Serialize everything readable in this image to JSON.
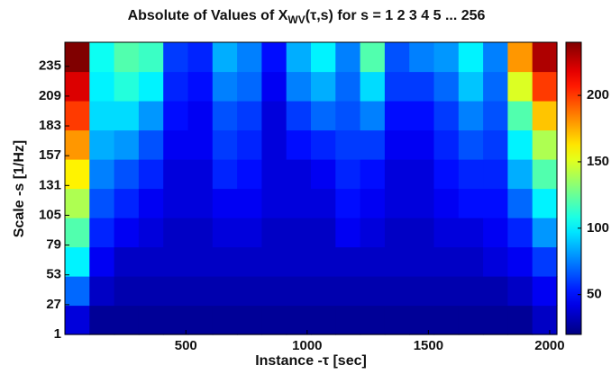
{
  "chart_data": {
    "type": "heatmap",
    "title": {
      "main": "Absolute of Values of X",
      "subscript": "WV",
      "rest": "(τ,s) for s =  1 2 3 4 5 ... 256"
    },
    "x_label": "Instance -τ [sec]",
    "y_label": "Scale -s [1/Hz]",
    "xlim": [
      1,
      2030
    ],
    "xticks": [
      500,
      1000,
      1500,
      2000
    ],
    "ylim": [
      1,
      256
    ],
    "yticks": [
      1,
      27,
      53,
      79,
      105,
      131,
      157,
      183,
      209,
      235
    ],
    "colormap": "jet",
    "clim": [
      20,
      240
    ],
    "cticks": [
      50,
      100,
      150,
      200
    ],
    "z": [
      [
        40,
        25,
        25,
        25,
        25,
        25,
        25,
        25,
        25,
        25,
        25,
        25,
        25,
        25,
        25,
        25,
        25,
        25,
        25,
        35
      ],
      [
        70,
        35,
        30,
        30,
        30,
        30,
        30,
        30,
        30,
        30,
        30,
        30,
        30,
        30,
        30,
        30,
        30,
        30,
        35,
        45
      ],
      [
        100,
        45,
        35,
        35,
        35,
        35,
        35,
        35,
        35,
        35,
        35,
        35,
        35,
        35,
        35,
        35,
        35,
        40,
        45,
        60
      ],
      [
        120,
        55,
        45,
        40,
        35,
        35,
        40,
        40,
        35,
        35,
        35,
        45,
        40,
        35,
        35,
        40,
        40,
        45,
        55,
        80
      ],
      [
        140,
        65,
        55,
        45,
        40,
        40,
        45,
        45,
        40,
        40,
        40,
        50,
        45,
        40,
        40,
        45,
        50,
        50,
        70,
        100
      ],
      [
        160,
        75,
        65,
        55,
        40,
        40,
        55,
        50,
        40,
        40,
        45,
        55,
        50,
        40,
        40,
        50,
        55,
        55,
        85,
        120
      ],
      [
        180,
        85,
        80,
        65,
        45,
        45,
        60,
        55,
        40,
        50,
        55,
        60,
        60,
        45,
        45,
        55,
        65,
        60,
        100,
        140
      ],
      [
        200,
        95,
        95,
        80,
        50,
        45,
        65,
        60,
        40,
        60,
        70,
        65,
        75,
        50,
        50,
        60,
        75,
        65,
        120,
        170
      ],
      [
        220,
        100,
        110,
        100,
        55,
        50,
        75,
        70,
        45,
        75,
        85,
        70,
        95,
        60,
        60,
        70,
        90,
        70,
        150,
        200
      ],
      [
        240,
        105,
        120,
        115,
        60,
        55,
        85,
        75,
        50,
        85,
        100,
        75,
        120,
        65,
        75,
        80,
        100,
        75,
        180,
        230
      ]
    ]
  }
}
